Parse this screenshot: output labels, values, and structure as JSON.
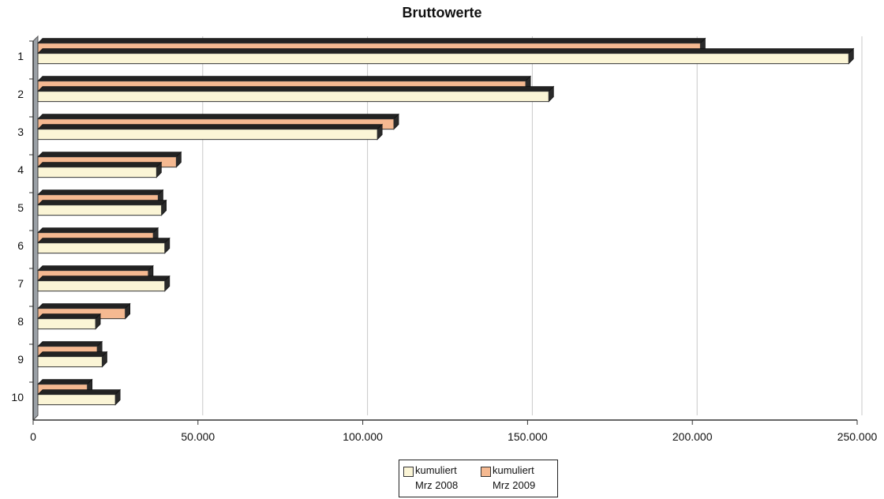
{
  "chart_data": {
    "type": "bar",
    "orientation": "horizontal",
    "title": "Bruttowerte",
    "categories": [
      "1",
      "2",
      "3",
      "4",
      "5",
      "6",
      "7",
      "8",
      "9",
      "10"
    ],
    "series": [
      {
        "name_line1": "kumuliert",
        "name_line2": "Mrz 2008",
        "color": "#fbf5d6",
        "values": [
          246000,
          155000,
          103000,
          36000,
          37500,
          38500,
          38500,
          17500,
          19500,
          23500
        ]
      },
      {
        "name_line1": "kumuliert",
        "name_line2": "Mrz 2009",
        "color": "#f5b991",
        "values": [
          201000,
          148000,
          108000,
          42000,
          36500,
          35000,
          33500,
          26500,
          18000,
          15000
        ]
      }
    ],
    "xlim": [
      0,
      250000
    ],
    "xticks": [
      0,
      50000,
      100000,
      150000,
      200000,
      250000
    ],
    "xtick_labels": [
      "0",
      "50.000",
      "100.000",
      "150.000",
      "200.000",
      "250.000"
    ],
    "grid": "vertical",
    "legend_position": "bottom"
  }
}
